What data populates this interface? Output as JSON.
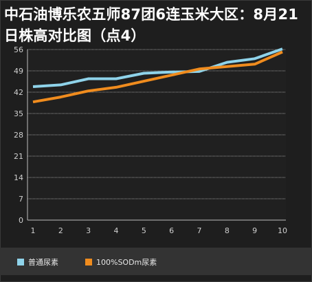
{
  "chart_data": {
    "type": "line",
    "title": "中石油博乐农五师87团6连玉米大区：8月21日株高对比图（点4）",
    "categories": [
      "1",
      "2",
      "3",
      "4",
      "5",
      "6",
      "7",
      "8",
      "9",
      "10"
    ],
    "series": [
      {
        "name": "普通尿素",
        "color": "#8fd3ea",
        "values": [
          43.8,
          44.4,
          46.4,
          46.4,
          48.2,
          48.6,
          48.8,
          51.8,
          53.0,
          56.2
        ]
      },
      {
        "name": "100%SODm尿素",
        "color": "#f08c1e",
        "values": [
          38.8,
          40.4,
          42.4,
          43.6,
          45.6,
          47.6,
          49.6,
          50.4,
          51.2,
          55.2
        ]
      }
    ],
    "ylim": [
      0,
      56
    ],
    "yticks": [
      0,
      7,
      14,
      21,
      28,
      35,
      42,
      49,
      56
    ],
    "grid": true,
    "legend_position": "bottom"
  },
  "legend": {
    "series1": "普通尿素",
    "series2": "100%SODm尿素"
  }
}
